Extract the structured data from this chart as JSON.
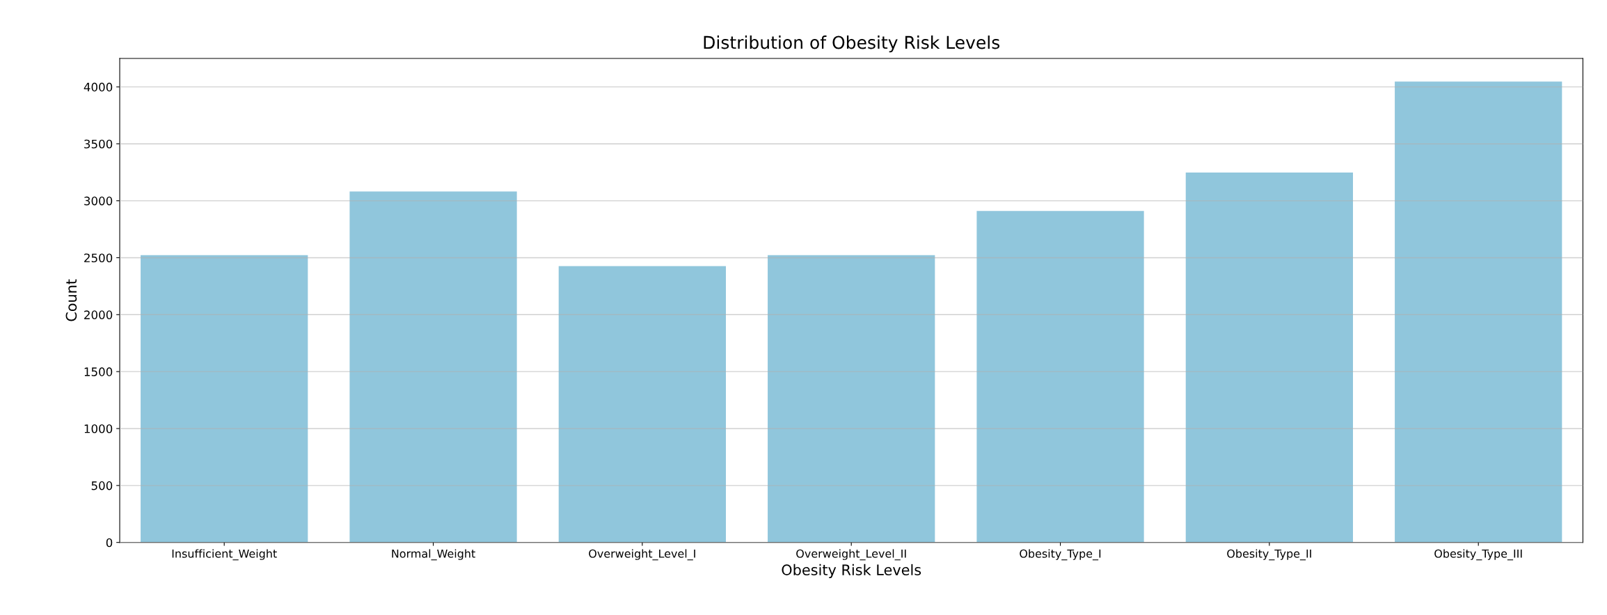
{
  "chart_data": {
    "type": "bar",
    "title": "Distribution of Obesity Risk Levels",
    "xlabel": "Obesity Risk Levels",
    "ylabel": "Count",
    "categories": [
      "Insufficient_Weight",
      "Normal_Weight",
      "Overweight_Level_I",
      "Overweight_Level_II",
      "Obesity_Type_I",
      "Obesity_Type_II",
      "Obesity_Type_III"
    ],
    "values": [
      2523,
      3082,
      2427,
      2522,
      2910,
      3248,
      4046
    ],
    "color": "#90c6dc",
    "ylim": [
      0,
      4250
    ],
    "yticks": [
      0,
      500,
      1000,
      1500,
      2000,
      2500,
      3000,
      3500,
      4000
    ],
    "grid": "y"
  }
}
